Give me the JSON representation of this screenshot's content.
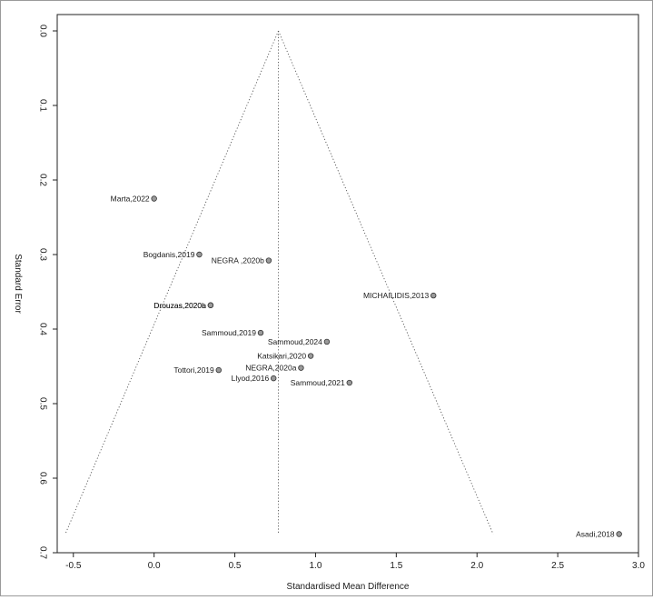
{
  "chart_data": {
    "type": "scatter",
    "title": "",
    "xlabel": "Standardised Mean Difference",
    "ylabel": "Standard Error",
    "xlim": [
      -0.6,
      3.0
    ],
    "ylim": [
      0.0,
      0.7
    ],
    "y_reversed": true,
    "x_ticks": [
      "-0.5",
      "0.0",
      "0.5",
      "1.0",
      "1.5",
      "2.0",
      "2.5",
      "3.0"
    ],
    "y_ticks": [
      "0.0",
      "0.1",
      "0.2",
      "0.3",
      "0.4",
      "0.5",
      "0.6",
      "0.7"
    ],
    "funnel": {
      "center": 0.77,
      "left_at_base": -0.55,
      "right_at_base": 2.1,
      "base_se": 0.675,
      "line_style": "dotted"
    },
    "grid": false,
    "points": [
      {
        "label": "Marta,2022",
        "x": 0.0,
        "y": 0.225
      },
      {
        "label": "Bogdanis,2019",
        "x": 0.28,
        "y": 0.3
      },
      {
        "label": "NEGRA ,2020b",
        "x": 0.71,
        "y": 0.308
      },
      {
        "label": "MICHAILIDIS,2013",
        "x": 1.73,
        "y": 0.355
      },
      {
        "label": "Drouzas,2020b",
        "x": 0.35,
        "y": 0.368
      },
      {
        "label": "Drouzas,2020a",
        "x": 0.35,
        "y": 0.368
      },
      {
        "label": "Sammoud,2019",
        "x": 0.66,
        "y": 0.405
      },
      {
        "label": "Sammoud,2024",
        "x": 1.07,
        "y": 0.417
      },
      {
        "label": "Katsikari,2020",
        "x": 0.97,
        "y": 0.436
      },
      {
        "label": "Tottori,2019",
        "x": 0.4,
        "y": 0.455
      },
      {
        "label": "NEGRA,2020a",
        "x": 0.91,
        "y": 0.452
      },
      {
        "label": "Llyod,2016",
        "x": 0.74,
        "y": 0.466
      },
      {
        "label": "Sammoud,2021",
        "x": 1.21,
        "y": 0.472
      },
      {
        "label": "Asadi,2018",
        "x": 2.88,
        "y": 0.675
      }
    ]
  }
}
